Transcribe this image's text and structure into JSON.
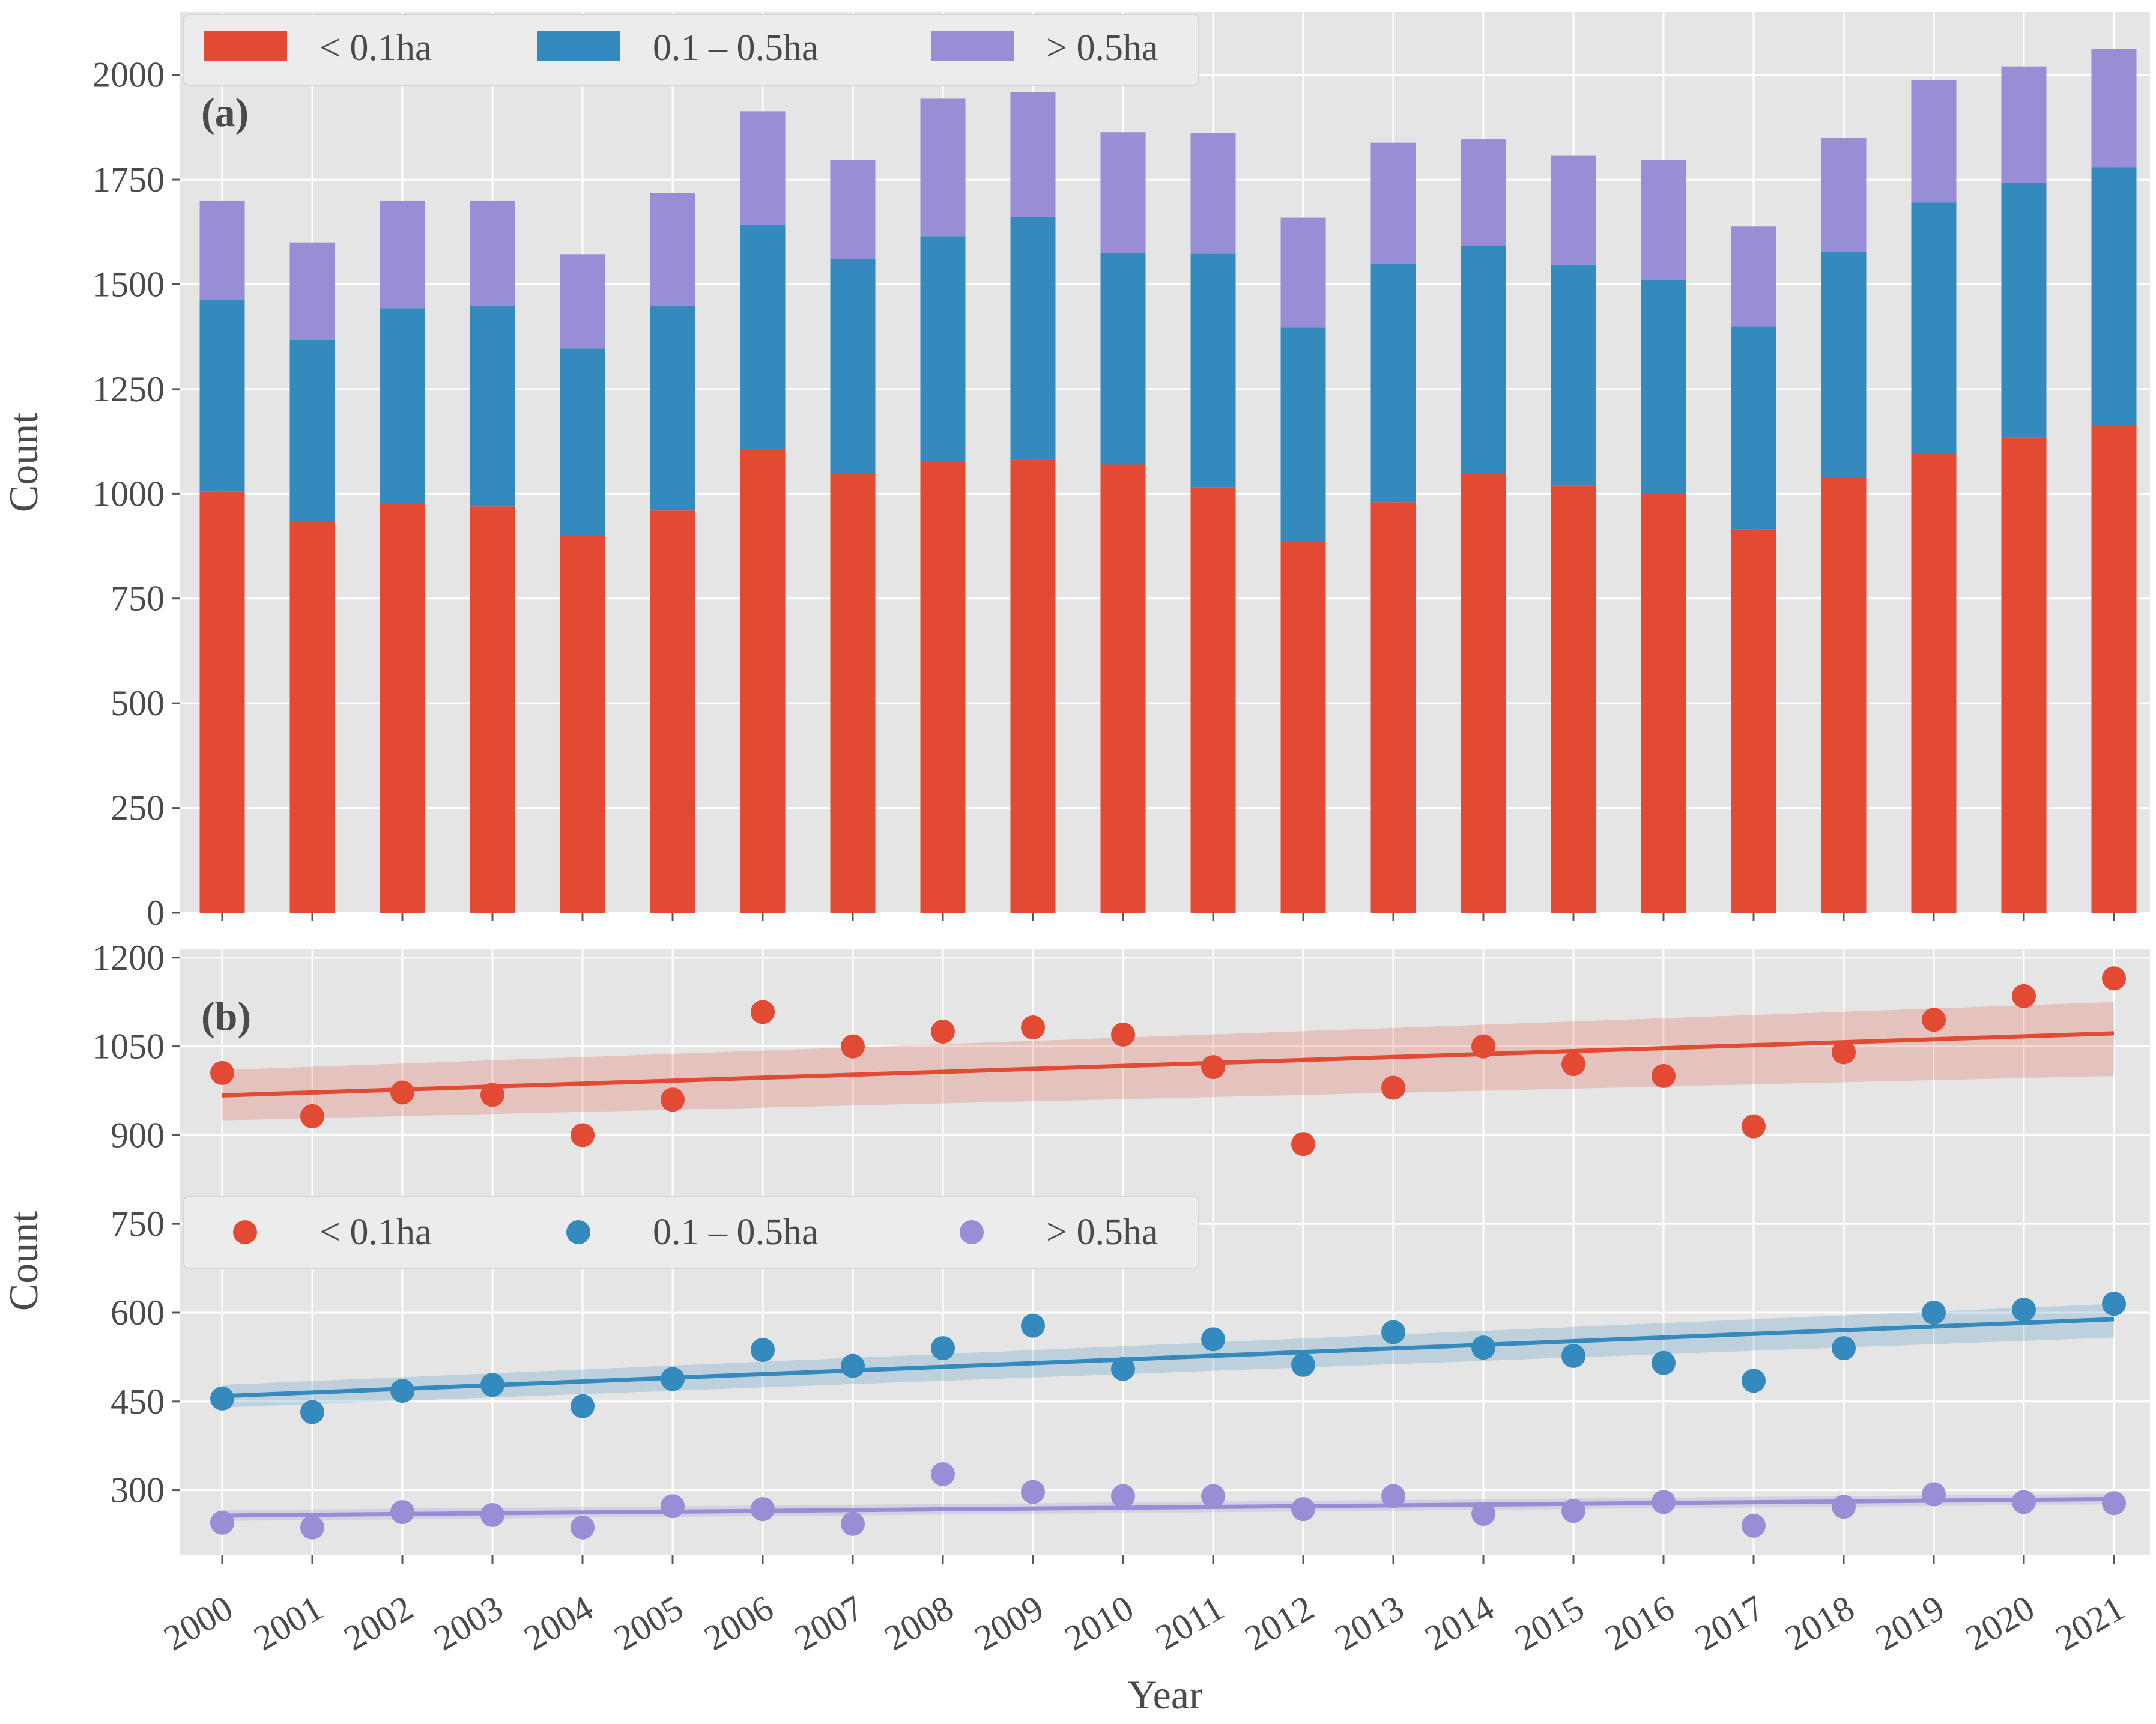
{
  "chart_data": [
    {
      "type": "bar",
      "stacked": true,
      "panel_label": "(a)",
      "ylabel": "Count",
      "ylim": [
        0,
        2150
      ],
      "yticks": [
        "0",
        "250",
        "500",
        "750",
        "1000",
        "1250",
        "1500",
        "1750",
        "2000"
      ],
      "categories": [
        "2000",
        "2001",
        "2002",
        "2003",
        "2004",
        "2005",
        "2006",
        "2007",
        "2008",
        "2009",
        "2010",
        "2011",
        "2012",
        "2013",
        "2014",
        "2015",
        "2016",
        "2017",
        "2018",
        "2019",
        "2020",
        "2021"
      ],
      "legend_position": "top-left",
      "series": [
        {
          "name": "< 0.1ha",
          "color": "#e24a33",
          "values": [
            1005,
            932,
            975,
            970,
            900,
            960,
            1108,
            1050,
            1075,
            1082,
            1070,
            1015,
            885,
            980,
            1050,
            1020,
            1000,
            915,
            1040,
            1095,
            1135,
            1165
          ]
        },
        {
          "name": "0.1 – 0.5ha",
          "color": "#348abd",
          "values": [
            457,
            435,
            468,
            478,
            447,
            488,
            535,
            510,
            540,
            578,
            505,
            558,
            512,
            568,
            541,
            527,
            510,
            485,
            538,
            600,
            608,
            615
          ]
        },
        {
          "name": "> 0.5ha",
          "color": "#988ed5",
          "values": [
            238,
            233,
            257,
            252,
            225,
            270,
            270,
            237,
            328,
            298,
            288,
            288,
            262,
            290,
            255,
            261,
            287,
            238,
            272,
            293,
            277,
            282
          ]
        }
      ]
    },
    {
      "type": "scatter",
      "panel_label": "(b)",
      "xlabel": "Year",
      "ylabel": "Count",
      "ylim": [
        190,
        1215
      ],
      "yticks": [
        "300",
        "450",
        "600",
        "750",
        "900",
        "1050",
        "1200"
      ],
      "categories": [
        "2000",
        "2001",
        "2002",
        "2003",
        "2004",
        "2005",
        "2006",
        "2007",
        "2008",
        "2009",
        "2010",
        "2011",
        "2012",
        "2013",
        "2014",
        "2015",
        "2016",
        "2017",
        "2018",
        "2019",
        "2020",
        "2021"
      ],
      "legend_position": "center-left",
      "series": [
        {
          "name": "< 0.1ha",
          "color": "#e24a33",
          "values": [
            1005,
            932,
            972,
            968,
            900,
            960,
            1108,
            1050,
            1075,
            1082,
            1070,
            1015,
            885,
            980,
            1050,
            1020,
            1000,
            915,
            1040,
            1095,
            1135,
            1165
          ],
          "trend": [
            967,
            1072
          ],
          "ci_start": [
            925,
            1010
          ],
          "ci_end": [
            1000,
            1125
          ]
        },
        {
          "name": "0.1 – 0.5ha",
          "color": "#348abd",
          "values": [
            455,
            432,
            468,
            478,
            442,
            488,
            537,
            510,
            540,
            578,
            505,
            555,
            512,
            567,
            541,
            527,
            515,
            485,
            540,
            600,
            605,
            615
          ],
          "trend": [
            459,
            589
          ],
          "ci_start": [
            440,
            478
          ],
          "ci_end": [
            558,
            615
          ]
        },
        {
          "name": "> 0.5ha",
          "color": "#988ed5",
          "values": [
            245,
            237,
            263,
            258,
            237,
            273,
            268,
            243,
            327,
            297,
            290,
            290,
            268,
            290,
            260,
            265,
            280,
            240,
            272,
            293,
            280,
            278
          ],
          "trend": [
            257,
            285
          ],
          "ci_start": [
            248,
            266
          ],
          "ci_end": [
            276,
            294
          ]
        }
      ]
    }
  ]
}
